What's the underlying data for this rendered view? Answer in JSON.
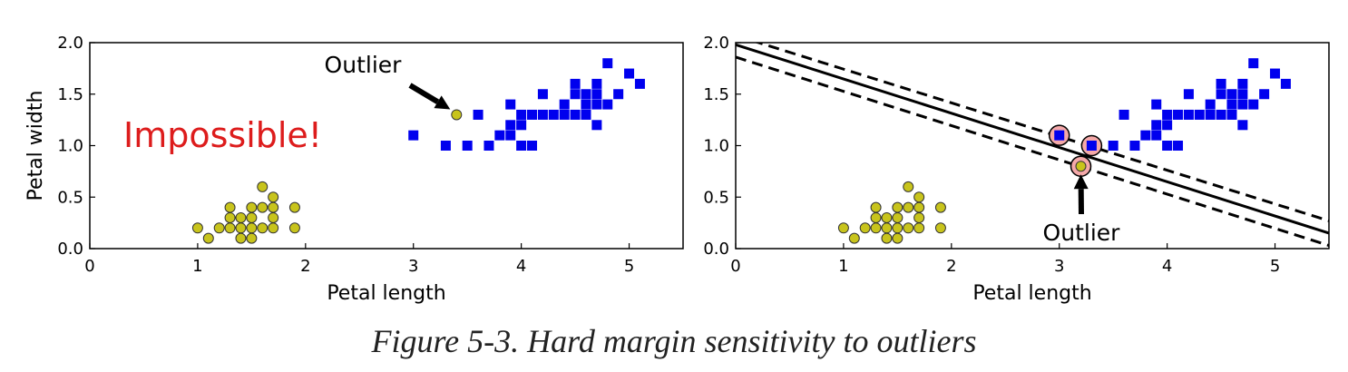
{
  "caption": "Figure 5-3. Hard margin sensitivity to outliers",
  "colors": {
    "square_class": "#0000ee",
    "circle_class": "#c8c41c",
    "annotation_red": "#dd1c1c",
    "support_vector_fill": "#f5a9a9",
    "axis": "#000000"
  },
  "chart_data": [
    {
      "type": "scatter",
      "title": "",
      "xlabel": "Petal length",
      "ylabel": "Petal width",
      "xlim": [
        0,
        5.5
      ],
      "ylim": [
        0,
        2.0
      ],
      "xticks": [
        "0",
        "1",
        "2",
        "3",
        "4",
        "5"
      ],
      "yticks": [
        "0.0",
        "0.5",
        "1.0",
        "1.5",
        "2.0"
      ],
      "grid": false,
      "series": [
        {
          "marker": "square",
          "points": [
            [
              3.0,
              1.1
            ],
            [
              3.3,
              1.0
            ],
            [
              3.5,
              1.0
            ],
            [
              3.6,
              1.3
            ],
            [
              3.7,
              1.0
            ],
            [
              3.8,
              1.1
            ],
            [
              3.9,
              1.1
            ],
            [
              3.9,
              1.2
            ],
            [
              3.9,
              1.4
            ],
            [
              4.0,
              1.0
            ],
            [
              4.0,
              1.2
            ],
            [
              4.0,
              1.3
            ],
            [
              4.1,
              1.0
            ],
            [
              4.1,
              1.3
            ],
            [
              4.2,
              1.3
            ],
            [
              4.2,
              1.5
            ],
            [
              4.3,
              1.3
            ],
            [
              4.4,
              1.3
            ],
            [
              4.4,
              1.4
            ],
            [
              4.5,
              1.3
            ],
            [
              4.5,
              1.5
            ],
            [
              4.5,
              1.6
            ],
            [
              4.6,
              1.3
            ],
            [
              4.6,
              1.4
            ],
            [
              4.6,
              1.5
            ],
            [
              4.7,
              1.2
            ],
            [
              4.7,
              1.4
            ],
            [
              4.7,
              1.5
            ],
            [
              4.7,
              1.6
            ],
            [
              4.8,
              1.4
            ],
            [
              4.8,
              1.8
            ],
            [
              4.9,
              1.5
            ],
            [
              5.0,
              1.7
            ],
            [
              5.1,
              1.6
            ]
          ]
        },
        {
          "marker": "circle",
          "points": [
            [
              1.0,
              0.2
            ],
            [
              1.1,
              0.1
            ],
            [
              1.2,
              0.2
            ],
            [
              1.3,
              0.2
            ],
            [
              1.3,
              0.3
            ],
            [
              1.3,
              0.4
            ],
            [
              1.4,
              0.1
            ],
            [
              1.4,
              0.2
            ],
            [
              1.4,
              0.3
            ],
            [
              1.5,
              0.1
            ],
            [
              1.5,
              0.2
            ],
            [
              1.5,
              0.3
            ],
            [
              1.5,
              0.4
            ],
            [
              1.6,
              0.2
            ],
            [
              1.6,
              0.4
            ],
            [
              1.6,
              0.6
            ],
            [
              1.7,
              0.2
            ],
            [
              1.7,
              0.3
            ],
            [
              1.7,
              0.4
            ],
            [
              1.7,
              0.5
            ],
            [
              1.9,
              0.2
            ],
            [
              1.9,
              0.4
            ],
            [
              3.4,
              1.3
            ]
          ]
        }
      ],
      "annotations": [
        {
          "text": "Outlier",
          "arrow_to": [
            3.4,
            1.3
          ]
        },
        {
          "text": "Impossible!",
          "at": [
            0.3,
            1.1
          ]
        }
      ]
    },
    {
      "type": "scatter",
      "title": "",
      "xlabel": "Petal length",
      "ylabel": "",
      "xlim": [
        0,
        5.5
      ],
      "ylim": [
        0,
        2.0
      ],
      "xticks": [
        "0",
        "1",
        "2",
        "3",
        "4",
        "5"
      ],
      "yticks": [
        "0.0",
        "0.5",
        "1.0",
        "1.5",
        "2.0"
      ],
      "grid": false,
      "series": [
        {
          "marker": "square",
          "points": [
            [
              3.0,
              1.1
            ],
            [
              3.3,
              1.0
            ],
            [
              3.5,
              1.0
            ],
            [
              3.6,
              1.3
            ],
            [
              3.7,
              1.0
            ],
            [
              3.8,
              1.1
            ],
            [
              3.9,
              1.1
            ],
            [
              3.9,
              1.2
            ],
            [
              3.9,
              1.4
            ],
            [
              4.0,
              1.0
            ],
            [
              4.0,
              1.2
            ],
            [
              4.0,
              1.3
            ],
            [
              4.1,
              1.0
            ],
            [
              4.1,
              1.3
            ],
            [
              4.2,
              1.3
            ],
            [
              4.2,
              1.5
            ],
            [
              4.3,
              1.3
            ],
            [
              4.4,
              1.3
            ],
            [
              4.4,
              1.4
            ],
            [
              4.5,
              1.3
            ],
            [
              4.5,
              1.5
            ],
            [
              4.5,
              1.6
            ],
            [
              4.6,
              1.3
            ],
            [
              4.6,
              1.4
            ],
            [
              4.6,
              1.5
            ],
            [
              4.7,
              1.2
            ],
            [
              4.7,
              1.4
            ],
            [
              4.7,
              1.5
            ],
            [
              4.7,
              1.6
            ],
            [
              4.8,
              1.4
            ],
            [
              4.8,
              1.8
            ],
            [
              4.9,
              1.5
            ],
            [
              5.0,
              1.7
            ],
            [
              5.1,
              1.6
            ]
          ]
        },
        {
          "marker": "circle",
          "points": [
            [
              1.0,
              0.2
            ],
            [
              1.1,
              0.1
            ],
            [
              1.2,
              0.2
            ],
            [
              1.3,
              0.2
            ],
            [
              1.3,
              0.3
            ],
            [
              1.3,
              0.4
            ],
            [
              1.4,
              0.1
            ],
            [
              1.4,
              0.2
            ],
            [
              1.4,
              0.3
            ],
            [
              1.5,
              0.1
            ],
            [
              1.5,
              0.2
            ],
            [
              1.5,
              0.3
            ],
            [
              1.5,
              0.4
            ],
            [
              1.6,
              0.2
            ],
            [
              1.6,
              0.4
            ],
            [
              1.6,
              0.6
            ],
            [
              1.7,
              0.2
            ],
            [
              1.7,
              0.3
            ],
            [
              1.7,
              0.4
            ],
            [
              1.7,
              0.5
            ],
            [
              1.9,
              0.2
            ],
            [
              1.9,
              0.4
            ],
            [
              3.2,
              0.8
            ]
          ]
        }
      ],
      "support_vectors": [
        [
          3.0,
          1.1
        ],
        [
          3.3,
          1.0
        ],
        [
          3.2,
          0.8
        ]
      ],
      "lines": [
        {
          "style": "solid",
          "points": [
            [
              0,
              1.98
            ],
            [
              5.5,
              0.15
            ]
          ]
        },
        {
          "style": "dashed",
          "points": [
            [
              0,
              2.07
            ],
            [
              5.5,
              0.27
            ]
          ]
        },
        {
          "style": "dashed",
          "points": [
            [
              0,
              1.86
            ],
            [
              5.5,
              0.03
            ]
          ]
        }
      ],
      "annotations": [
        {
          "text": "Outlier",
          "arrow_to": [
            3.2,
            0.8
          ]
        }
      ]
    }
  ]
}
